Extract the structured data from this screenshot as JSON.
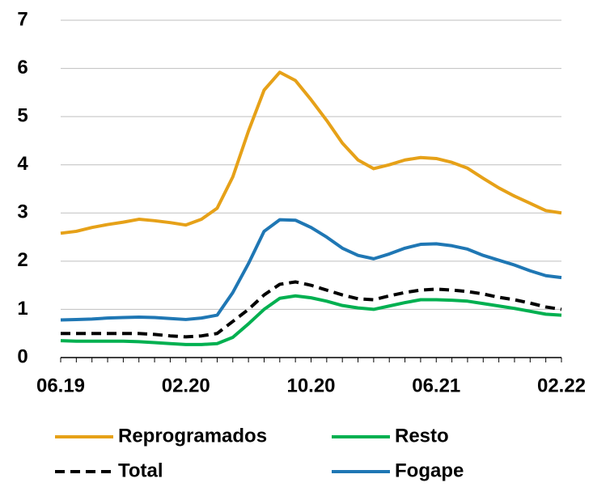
{
  "chart_data": {
    "type": "line",
    "categories": [
      "06.19",
      null,
      null,
      null,
      null,
      null,
      null,
      null,
      "02.20",
      null,
      null,
      null,
      null,
      null,
      null,
      null,
      "10.20",
      null,
      null,
      null,
      null,
      null,
      null,
      null,
      "06.21",
      null,
      null,
      null,
      null,
      null,
      null,
      null,
      "02.22"
    ],
    "series": [
      {
        "name": "Reprogramados",
        "color": "#e6a118",
        "style": "solid",
        "values": [
          2.58,
          2.62,
          2.7,
          2.76,
          2.81,
          2.87,
          2.84,
          2.8,
          2.75,
          2.87,
          3.1,
          3.75,
          4.7,
          5.55,
          5.92,
          5.75,
          5.35,
          4.92,
          4.45,
          4.1,
          3.92,
          4.0,
          4.1,
          4.15,
          4.13,
          4.05,
          3.93,
          3.72,
          3.52,
          3.35,
          3.2,
          3.05,
          3.0
        ]
      },
      {
        "name": "Resto",
        "color": "#00b050",
        "style": "solid",
        "values": [
          0.35,
          0.34,
          0.34,
          0.34,
          0.34,
          0.33,
          0.31,
          0.29,
          0.27,
          0.27,
          0.29,
          0.42,
          0.7,
          1.0,
          1.23,
          1.28,
          1.24,
          1.17,
          1.08,
          1.03,
          1.0,
          1.07,
          1.14,
          1.2,
          1.2,
          1.19,
          1.17,
          1.12,
          1.07,
          1.02,
          0.96,
          0.9,
          0.88
        ]
      },
      {
        "name": "Total",
        "color": "#000000",
        "style": "dashed",
        "values": [
          0.5,
          0.5,
          0.5,
          0.5,
          0.5,
          0.5,
          0.48,
          0.45,
          0.43,
          0.45,
          0.5,
          0.75,
          1.0,
          1.3,
          1.52,
          1.57,
          1.5,
          1.4,
          1.3,
          1.22,
          1.2,
          1.28,
          1.35,
          1.4,
          1.42,
          1.4,
          1.37,
          1.32,
          1.25,
          1.2,
          1.13,
          1.05,
          1.0
        ]
      },
      {
        "name": "Fogape",
        "color": "#1f77b4",
        "style": "solid",
        "values": [
          0.78,
          0.79,
          0.8,
          0.82,
          0.83,
          0.84,
          0.83,
          0.81,
          0.79,
          0.82,
          0.88,
          1.35,
          1.95,
          2.62,
          2.86,
          2.85,
          2.7,
          2.5,
          2.27,
          2.12,
          2.05,
          2.15,
          2.27,
          2.35,
          2.36,
          2.32,
          2.25,
          2.12,
          2.02,
          1.92,
          1.8,
          1.7,
          1.66
        ]
      }
    ],
    "ylim": [
      0,
      7
    ],
    "yticks": [
      0,
      1,
      2,
      3,
      4,
      5,
      6,
      7
    ],
    "grid": true
  }
}
